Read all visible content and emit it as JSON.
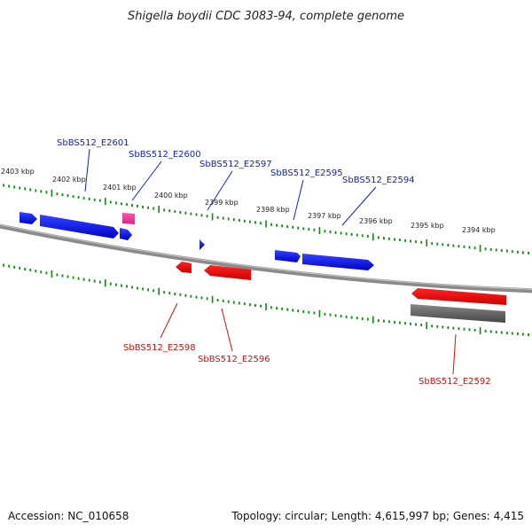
{
  "title": "Shigella boydii CDC 3083-94, complete genome",
  "footer": {
    "accession": "Accession: NC_010658",
    "topology": "Topology: circular; Length: 4,615,997 bp; Genes: 4,415"
  },
  "colors": {
    "forward_gene": "#0000ee",
    "reverse_gene": "#ee0000",
    "rna_gene": "#ee3399",
    "pseudo_gene": "#555555",
    "backbone": "#777777",
    "ticks": "#118811",
    "label_forward": "#1122bb",
    "label_reverse": "#cc1111"
  },
  "scale_labels": [
    "2403 kbp",
    "2402 kbp",
    "2401 kbp",
    "2400 kbp",
    "2399 kbp",
    "2398 kbp",
    "2397 kbp",
    "2396 kbp",
    "2395 kbp",
    "2394 kbp"
  ],
  "gene_labels": {
    "forward": [
      "SbBS512_E2601",
      "SbBS512_E2600",
      "SbBS512_E2597",
      "SbBS512_E2595",
      "SbBS512_E2594"
    ],
    "reverse": [
      "SbBS512_E2598",
      "SbBS512_E2596",
      "SbBS512_E2592"
    ]
  }
}
